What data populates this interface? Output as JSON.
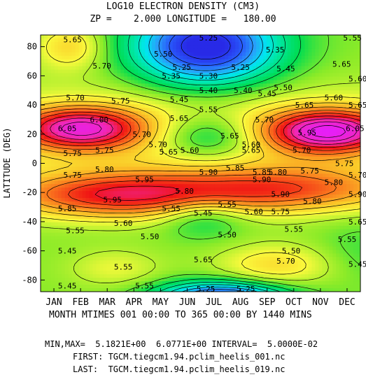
{
  "header": {
    "title": "LOG10 ELECTRON DENSITY (CM3)",
    "subtitle": "ZP =    2.000 LONGITUDE =   180.00"
  },
  "chart_data": {
    "type": "contour",
    "title": "LOG10 ELECTRON DENSITY (CM3)",
    "ylabel": "LATITUDE (DEG)",
    "xlabel": "MONTH MTIMES 001 00:00 TO 365 00:00 BY 1440 MINS",
    "x_ticks": [
      "JAN",
      "FEB",
      "MAR",
      "APR",
      "MAY",
      "JUN",
      "JUL",
      "AUG",
      "SEP",
      "OCT",
      "NOV",
      "DEC"
    ],
    "y_ticks": [
      80,
      60,
      40,
      20,
      0,
      -20,
      -40,
      -60,
      -80
    ],
    "ylim": [
      -88,
      88
    ],
    "min": 5.1821,
    "max": 6.0771,
    "interval": 0.05,
    "contour_labels": [
      {
        "text": "5.65",
        "m": 0.7,
        "lat": 85
      },
      {
        "text": "5.25",
        "m": 5.8,
        "lat": 86
      },
      {
        "text": "5.35",
        "m": 8.3,
        "lat": 78
      },
      {
        "text": "5.55",
        "m": 11.2,
        "lat": 86
      },
      {
        "text": "5.50",
        "m": 4.1,
        "lat": 75
      },
      {
        "text": "5.65",
        "m": 10.8,
        "lat": 68
      },
      {
        "text": "5.70",
        "m": 1.8,
        "lat": 67
      },
      {
        "text": "5.25",
        "m": 4.8,
        "lat": 66
      },
      {
        "text": "5.25",
        "m": 7.0,
        "lat": 66
      },
      {
        "text": "5.45",
        "m": 8.7,
        "lat": 65
      },
      {
        "text": "5.60",
        "m": 11.4,
        "lat": 58
      },
      {
        "text": "5.35",
        "m": 4.4,
        "lat": 60
      },
      {
        "text": "5.30",
        "m": 5.8,
        "lat": 60
      },
      {
        "text": "5.40",
        "m": 5.8,
        "lat": 50
      },
      {
        "text": "5.40",
        "m": 7.1,
        "lat": 50
      },
      {
        "text": "5.45",
        "m": 8.0,
        "lat": 48
      },
      {
        "text": "5.50",
        "m": 8.6,
        "lat": 52
      },
      {
        "text": "5.70",
        "m": 0.8,
        "lat": 45
      },
      {
        "text": "5.75",
        "m": 2.5,
        "lat": 43
      },
      {
        "text": "5.45",
        "m": 4.7,
        "lat": 44
      },
      {
        "text": "5.60",
        "m": 10.5,
        "lat": 45
      },
      {
        "text": "5.65",
        "m": 11.4,
        "lat": 40
      },
      {
        "text": "5.55",
        "m": 5.8,
        "lat": 37
      },
      {
        "text": "5.65",
        "m": 9.4,
        "lat": 40
      },
      {
        "text": "6.00",
        "m": 1.7,
        "lat": 30
      },
      {
        "text": "5.65",
        "m": 4.7,
        "lat": 31
      },
      {
        "text": "5.70",
        "m": 7.9,
        "lat": 30
      },
      {
        "text": "6.05",
        "m": 0.5,
        "lat": 24
      },
      {
        "text": "5.95",
        "m": 9.5,
        "lat": 21
      },
      {
        "text": "6.05",
        "m": 11.3,
        "lat": 24
      },
      {
        "text": "5.70",
        "m": 3.3,
        "lat": 20
      },
      {
        "text": "5.65",
        "m": 6.6,
        "lat": 19
      },
      {
        "text": "5.60",
        "m": 7.4,
        "lat": 13
      },
      {
        "text": "5.70",
        "m": 3.9,
        "lat": 13
      },
      {
        "text": "5.65",
        "m": 4.3,
        "lat": 8
      },
      {
        "text": "5.60",
        "m": 5.1,
        "lat": 9
      },
      {
        "text": "5.65",
        "m": 7.4,
        "lat": 9
      },
      {
        "text": "5.70",
        "m": 9.3,
        "lat": 9
      },
      {
        "text": "5.75",
        "m": 0.7,
        "lat": 7
      },
      {
        "text": "5.75",
        "m": 1.9,
        "lat": 9
      },
      {
        "text": "5.75",
        "m": 10.9,
        "lat": 0
      },
      {
        "text": "5.75",
        "m": 0.7,
        "lat": -8
      },
      {
        "text": "5.80",
        "m": 1.9,
        "lat": -4
      },
      {
        "text": "5.85",
        "m": 6.8,
        "lat": -3
      },
      {
        "text": "5.90",
        "m": 5.8,
        "lat": -6
      },
      {
        "text": "5.85",
        "m": 7.8,
        "lat": -6
      },
      {
        "text": "5.80",
        "m": 8.4,
        "lat": -6
      },
      {
        "text": "5.75",
        "m": 9.6,
        "lat": -5
      },
      {
        "text": "5.70",
        "m": 11.4,
        "lat": -8
      },
      {
        "text": "5.95",
        "m": 3.4,
        "lat": -11
      },
      {
        "text": "5.90",
        "m": 7.8,
        "lat": -11
      },
      {
        "text": "5.80",
        "m": 10.5,
        "lat": -13
      },
      {
        "text": "5.80",
        "m": 4.9,
        "lat": -19
      },
      {
        "text": "5.90",
        "m": 8.5,
        "lat": -21
      },
      {
        "text": "5.90",
        "m": 11.4,
        "lat": -21
      },
      {
        "text": "5.95",
        "m": 2.2,
        "lat": -25
      },
      {
        "text": "5.80",
        "m": 9.7,
        "lat": -26
      },
      {
        "text": "5.85",
        "m": 0.5,
        "lat": -31
      },
      {
        "text": "5.55",
        "m": 4.4,
        "lat": -31
      },
      {
        "text": "5.55",
        "m": 6.5,
        "lat": -28
      },
      {
        "text": "5.60",
        "m": 7.5,
        "lat": -33
      },
      {
        "text": "5.75",
        "m": 8.5,
        "lat": -33
      },
      {
        "text": "5.45",
        "m": 5.6,
        "lat": -34
      },
      {
        "text": "5.60",
        "m": 2.6,
        "lat": -41
      },
      {
        "text": "5.65",
        "m": 11.4,
        "lat": -40
      },
      {
        "text": "5.55",
        "m": 0.8,
        "lat": -46
      },
      {
        "text": "5.50",
        "m": 3.6,
        "lat": -50
      },
      {
        "text": "5.50",
        "m": 6.5,
        "lat": -49
      },
      {
        "text": "5.55",
        "m": 9.0,
        "lat": -45
      },
      {
        "text": "5.55",
        "m": 11.0,
        "lat": -52
      },
      {
        "text": "5.45",
        "m": 0.5,
        "lat": -60
      },
      {
        "text": "5.50",
        "m": 8.9,
        "lat": -60
      },
      {
        "text": "5.55",
        "m": 2.6,
        "lat": -71
      },
      {
        "text": "5.65",
        "m": 5.6,
        "lat": -66
      },
      {
        "text": "5.70",
        "m": 8.7,
        "lat": -67
      },
      {
        "text": "5.45",
        "m": 11.4,
        "lat": -69
      },
      {
        "text": "5.45",
        "m": 0.5,
        "lat": -84
      },
      {
        "text": "5.55",
        "m": 3.4,
        "lat": -84
      },
      {
        "text": "5.25",
        "m": 5.7,
        "lat": -86
      },
      {
        "text": "5.25",
        "m": 7.2,
        "lat": -86
      }
    ]
  },
  "footer": {
    "minmax": "MIN,MAX=  5.1821E+00  6.0771E+00 INTERVAL=  5.0000E-02",
    "first": "FIRST: TGCM.tiegcm1.94.pclim_heelis_001.nc",
    "last": "LAST:  TGCM.tiegcm1.94.pclim_heelis_019.nc"
  }
}
